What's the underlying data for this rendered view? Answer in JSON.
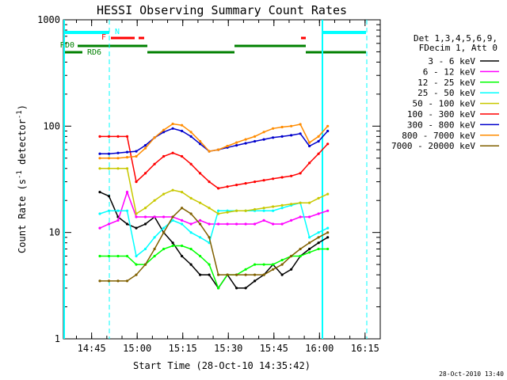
{
  "title": "HESSI Observing Summary Count Rates",
  "xlabel": "Start Time (28-Oct-10 14:35:42)",
  "ylabel_main": "Count Rate (s",
  "ylabel_sup1": "-1",
  "ylabel_mid": " detector",
  "ylabel_sup2": "-1",
  "ylabel_end": ")",
  "timestamp": "28-Oct-2010 13:40",
  "legend_header": [
    "Det 1,3,4,5,6,9,",
    "FDecim 1, Att 0"
  ],
  "flags": {
    "N": {
      "label": "N",
      "color": "#00ffff"
    },
    "F": {
      "label": "F",
      "color": "#ff0000"
    },
    "RD0": {
      "label": "RD0",
      "color": "#008000"
    },
    "RD6": {
      "label": "RD6",
      "color": "#008000"
    }
  },
  "chart_data": {
    "type": "line",
    "title": "HESSI Observing Summary Count Rates",
    "xlabel": "Start Time (28-Oct-10 14:35:42)",
    "ylabel": "Count Rate (s^-1 detector^-1)",
    "yscale": "log",
    "ylim": [
      1,
      1000
    ],
    "xlim": [
      "14:35:42",
      "16:20"
    ],
    "x_unit": "minutes since 14:35:42",
    "x_ticks": [
      "14:45",
      "15:00",
      "15:15",
      "15:30",
      "15:45",
      "16:00",
      "16:15"
    ],
    "y_ticks": [
      "1",
      "10",
      "100",
      "1000"
    ],
    "grid": false,
    "legend_position": "right",
    "x": [
      9,
      12,
      15,
      18,
      21,
      24,
      27,
      30,
      33,
      36,
      39,
      42,
      45,
      48,
      51,
      54,
      57,
      60,
      63,
      66,
      69,
      72,
      75,
      78,
      81,
      84,
      87
    ],
    "series": [
      {
        "name": "3 - 6 keV",
        "color": "#000000",
        "values": [
          null,
          24,
          22,
          14,
          12,
          11,
          12,
          14,
          10,
          8,
          6,
          5,
          4,
          4,
          3,
          4,
          3,
          3,
          3.5,
          4,
          5,
          4,
          4.5,
          6,
          7,
          8,
          9
        ]
      },
      {
        "name": "6 - 12 keV",
        "color": "#ff00ff",
        "values": [
          null,
          11,
          12,
          13,
          24,
          14,
          14,
          14,
          14,
          14,
          13,
          12,
          13,
          12,
          12,
          12,
          12,
          12,
          12,
          13,
          12,
          12,
          13,
          14,
          14,
          15,
          16
        ]
      },
      {
        "name": "12 - 25 keV",
        "color": "#00ff00",
        "values": [
          null,
          6,
          6,
          6,
          6,
          5,
          5,
          6,
          7,
          7.5,
          7.5,
          7,
          6,
          5,
          3,
          4,
          4,
          4.5,
          5,
          5,
          5,
          5.5,
          6,
          6,
          6.5,
          7,
          7
        ]
      },
      {
        "name": "25 - 50 keV",
        "color": "#00ffff",
        "values": [
          null,
          15,
          16,
          16,
          16,
          6,
          7,
          9,
          11,
          13,
          12,
          10,
          9,
          8,
          16,
          16,
          16,
          16,
          16,
          16,
          16,
          17,
          18,
          19,
          9,
          10,
          11
        ]
      },
      {
        "name": "50 - 100 keV",
        "color": "#c8c800",
        "values": [
          null,
          40,
          40,
          40,
          40,
          15,
          17,
          20,
          23,
          25,
          24,
          21,
          19,
          17,
          15,
          15.5,
          16,
          16,
          16.5,
          17,
          17.5,
          18,
          18.5,
          19,
          19,
          21,
          23
        ]
      },
      {
        "name": "100 - 300 keV",
        "color": "#ff0000",
        "values": [
          null,
          80,
          80,
          80,
          80,
          30,
          36,
          44,
          52,
          56,
          52,
          44,
          36,
          30,
          26,
          27,
          28,
          29,
          30,
          31,
          32,
          33,
          34,
          36,
          45,
          55,
          68
        ]
      },
      {
        "name": "300 - 800 keV",
        "color": "#0000cc",
        "values": [
          null,
          55,
          55,
          56,
          57,
          58,
          66,
          78,
          88,
          95,
          90,
          80,
          68,
          58,
          60,
          63,
          66,
          69,
          72,
          75,
          78,
          80,
          82,
          85,
          65,
          72,
          90
        ]
      },
      {
        "name": "800 - 7000 keV",
        "color": "#ff8c00",
        "values": [
          null,
          50,
          50,
          50,
          51,
          52,
          62,
          78,
          92,
          105,
          102,
          88,
          72,
          58,
          60,
          65,
          70,
          75,
          80,
          88,
          95,
          98,
          100,
          104,
          70,
          80,
          100
        ]
      },
      {
        "name": "7000 - 20000 keV",
        "color": "#806000",
        "values": [
          null,
          3.5,
          3.5,
          3.5,
          3.5,
          4,
          5,
          7,
          10,
          14,
          17,
          15,
          12,
          9,
          4,
          4,
          4,
          4,
          4,
          4,
          4.5,
          5,
          6,
          7,
          8,
          9,
          10
        ]
      }
    ]
  }
}
